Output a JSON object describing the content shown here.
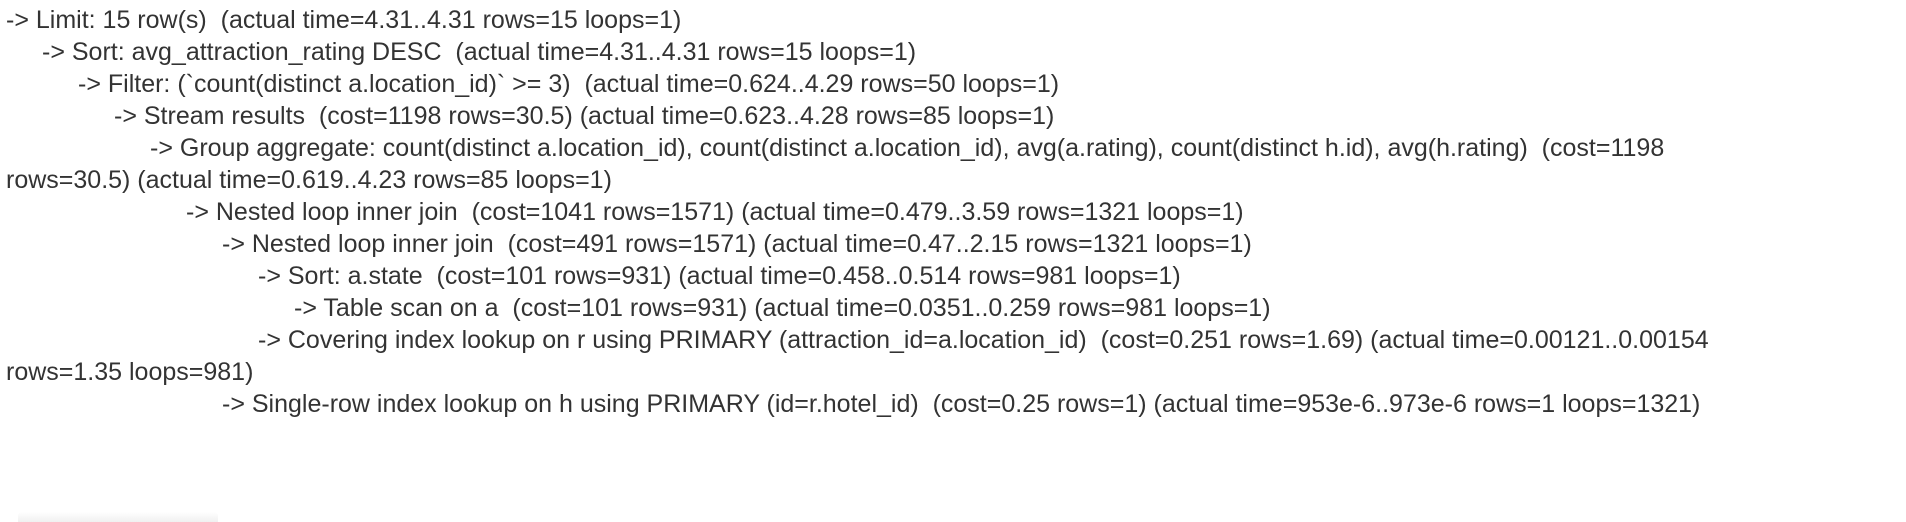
{
  "plan_lines": [
    {
      "indent": 0,
      "text": "-> Limit: 15 row(s)  (actual time=4.31..4.31 rows=15 loops=1)"
    },
    {
      "indent": 1,
      "text": "-> Sort: avg_attraction_rating DESC  (actual time=4.31..4.31 rows=15 loops=1)"
    },
    {
      "indent": 2,
      "text": "-> Filter: (`count(distinct a.location_id)` >= 3)  (actual time=0.624..4.29 rows=50 loops=1)"
    },
    {
      "indent": 3,
      "text": "-> Stream results  (cost=1198 rows=30.5) (actual time=0.623..4.28 rows=85 loops=1)"
    },
    {
      "indent": 4,
      "text": "-> Group aggregate: count(distinct a.location_id), count(distinct a.location_id), avg(a.rating), count(distinct h.id), avg(h.rating)  (cost=1198"
    },
    {
      "indent": 0,
      "text": "rows=30.5) (actual time=0.619..4.23 rows=85 loops=1)"
    },
    {
      "indent": 5,
      "text": "-> Nested loop inner join  (cost=1041 rows=1571) (actual time=0.479..3.59 rows=1321 loops=1)"
    },
    {
      "indent": 6,
      "text": "-> Nested loop inner join  (cost=491 rows=1571) (actual time=0.47..2.15 rows=1321 loops=1)"
    },
    {
      "indent": 7,
      "text": "-> Sort: a.state  (cost=101 rows=931) (actual time=0.458..0.514 rows=981 loops=1)"
    },
    {
      "indent": 8,
      "text": "-> Table scan on a  (cost=101 rows=931) (actual time=0.0351..0.259 rows=981 loops=1)"
    },
    {
      "indent": 7,
      "text": "-> Covering index lookup on r using PRIMARY (attraction_id=a.location_id)  (cost=0.251 rows=1.69) (actual time=0.00121..0.00154"
    },
    {
      "indent": 0,
      "text": "rows=1.35 loops=981)"
    },
    {
      "indent": 6,
      "text": "-> Single-row index lookup on h using PRIMARY (id=r.hotel_id)  (cost=0.25 rows=1) (actual time=953e-6..973e-6 rows=1 loops=1321)"
    }
  ]
}
